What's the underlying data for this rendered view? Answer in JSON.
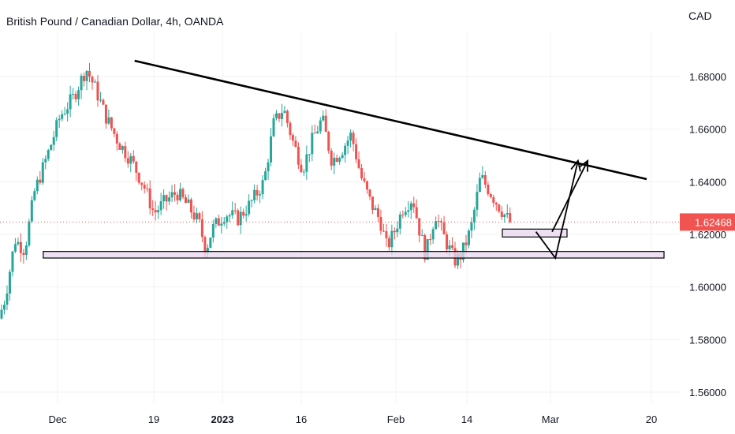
{
  "header": {
    "title": "British Pound / Canadian Dollar, 4h, OANDA",
    "currency": "CAD"
  },
  "chart_data": {
    "type": "candlestick",
    "title": "British Pound / Canadian Dollar, 4h, OANDA",
    "currency": "CAD",
    "ylim": [
      1.555,
      1.7
    ],
    "y_ticks": [
      "1.68000",
      "1.66000",
      "1.64000",
      "1.62000",
      "1.60000",
      "1.58000",
      "1.56000"
    ],
    "x_tick_labels": [
      {
        "label": "Dec",
        "bold": false
      },
      {
        "label": "19",
        "bold": false
      },
      {
        "label": "2023",
        "bold": true
      },
      {
        "label": "16",
        "bold": false
      },
      {
        "label": "Feb",
        "bold": false
      },
      {
        "label": "14",
        "bold": false
      },
      {
        "label": "Mar",
        "bold": false
      },
      {
        "label": "20",
        "bold": false
      }
    ],
    "last_price": "1.62468",
    "last_price_value": 1.62468,
    "grid": true,
    "colors": {
      "up": "#26a69a",
      "down": "#ef5350",
      "price_label": "#f05350",
      "zone_fill": "#ead7f0",
      "trendline": "#000000"
    },
    "price_path": [
      [
        0.0,
        1.588
      ],
      [
        0.02,
        1.596
      ],
      [
        0.05,
        1.618
      ],
      [
        0.08,
        1.614
      ],
      [
        0.11,
        1.636
      ],
      [
        0.15,
        1.65
      ],
      [
        0.19,
        1.665
      ],
      [
        0.23,
        1.672
      ],
      [
        0.27,
        1.683
      ],
      [
        0.3,
        1.675
      ],
      [
        0.33,
        1.665
      ],
      [
        0.37,
        1.655
      ],
      [
        0.41,
        1.648
      ],
      [
        0.45,
        1.638
      ],
      [
        0.48,
        1.628
      ],
      [
        0.51,
        1.632
      ],
      [
        0.55,
        1.636
      ],
      [
        0.59,
        1.63
      ],
      [
        0.62,
        1.624
      ],
      [
        0.64,
        1.614
      ],
      [
        0.66,
        1.622
      ],
      [
        0.7,
        1.628
      ],
      [
        0.74,
        1.626
      ],
      [
        0.78,
        1.632
      ],
      [
        0.82,
        1.64
      ],
      [
        0.85,
        1.662
      ],
      [
        0.88,
        1.668
      ],
      [
        0.91,
        1.655
      ],
      [
        0.94,
        1.645
      ],
      [
        0.97,
        1.656
      ],
      [
        1.0,
        1.664
      ],
      [
        1.03,
        1.648
      ],
      [
        1.06,
        1.652
      ],
      [
        1.09,
        1.658
      ],
      [
        1.12,
        1.642
      ],
      [
        1.15,
        1.632
      ],
      [
        1.18,
        1.625
      ],
      [
        1.2,
        1.615
      ],
      [
        1.22,
        1.62
      ],
      [
        1.25,
        1.63
      ],
      [
        1.28,
        1.634
      ],
      [
        1.3,
        1.622
      ],
      [
        1.32,
        1.612
      ],
      [
        1.35,
        1.628
      ],
      [
        1.38,
        1.618
      ],
      [
        1.41,
        1.61
      ],
      [
        1.43,
        1.612
      ],
      [
        1.46,
        1.622
      ],
      [
        1.49,
        1.642
      ],
      [
        1.52,
        1.636
      ],
      [
        1.55,
        1.63
      ],
      [
        1.58,
        1.6247
      ]
    ],
    "trendline": [
      [
        0.27,
        1.686
      ],
      [
        2.0,
        1.641
      ]
    ],
    "zones": [
      {
        "x0": 0.08,
        "x1": 2.0,
        "y0": 1.611,
        "y1": 1.6135
      },
      {
        "x0": 1.5,
        "x1": 1.7,
        "y0": 1.619,
        "y1": 1.622
      }
    ],
    "arrows": [
      {
        "path": [
          [
            1.56,
            1.621
          ],
          [
            1.62,
            1.611
          ],
          [
            1.69,
            1.648
          ]
        ]
      },
      {
        "path": [
          [
            1.61,
            1.621
          ],
          [
            1.72,
            1.648
          ]
        ]
      }
    ]
  }
}
